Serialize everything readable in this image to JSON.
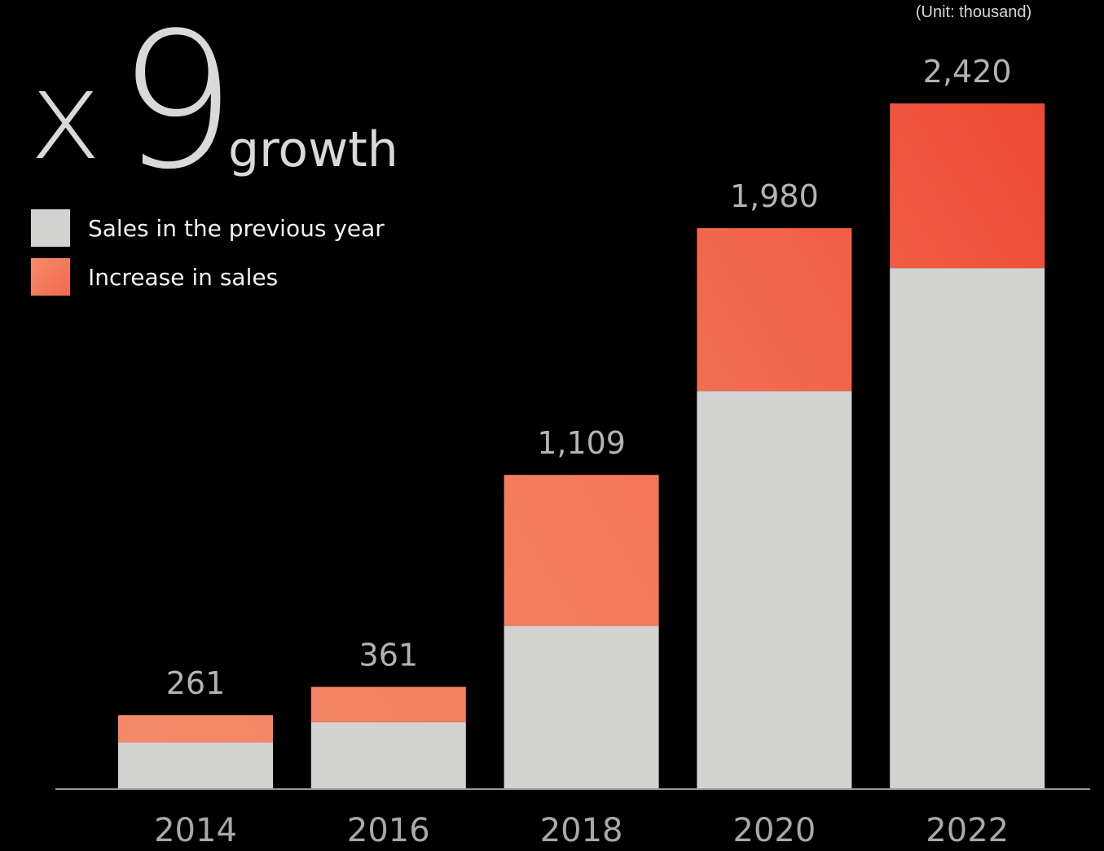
{
  "unit_note": "(Unit: thousand)",
  "headline": {
    "multiplier_x": "x",
    "multiplier_num": "9",
    "word": "growth"
  },
  "legend": [
    {
      "label": "Sales in the previous year",
      "color": "#d3d3d1"
    },
    {
      "label": "Increase in sales",
      "color": "#f47d5f"
    }
  ],
  "colors": {
    "base": "#d3d3d1",
    "increase_light": "#f58868",
    "increase_dark": "#ee4a33",
    "axis": "#9a9a9a",
    "value_label": "#b3b3b3",
    "tick_label": "#a9a9a9"
  },
  "chart_data": {
    "type": "bar",
    "stacked": true,
    "categories": [
      "2014",
      "2016",
      "2018",
      "2020",
      "2022"
    ],
    "series": [
      {
        "name": "Sales in the previous year",
        "values": [
          165,
          236,
          576,
          1405,
          1839
        ]
      },
      {
        "name": "Increase in sales",
        "values": [
          96,
          125,
          533,
          575,
          581
        ]
      }
    ],
    "totals": [
      261,
      361,
      1109,
      1980,
      2420
    ],
    "total_labels": [
      "261",
      "361",
      "1,109",
      "1,980",
      "2,420"
    ],
    "ylim": [
      0,
      2420
    ],
    "legend_position": "top-left"
  }
}
